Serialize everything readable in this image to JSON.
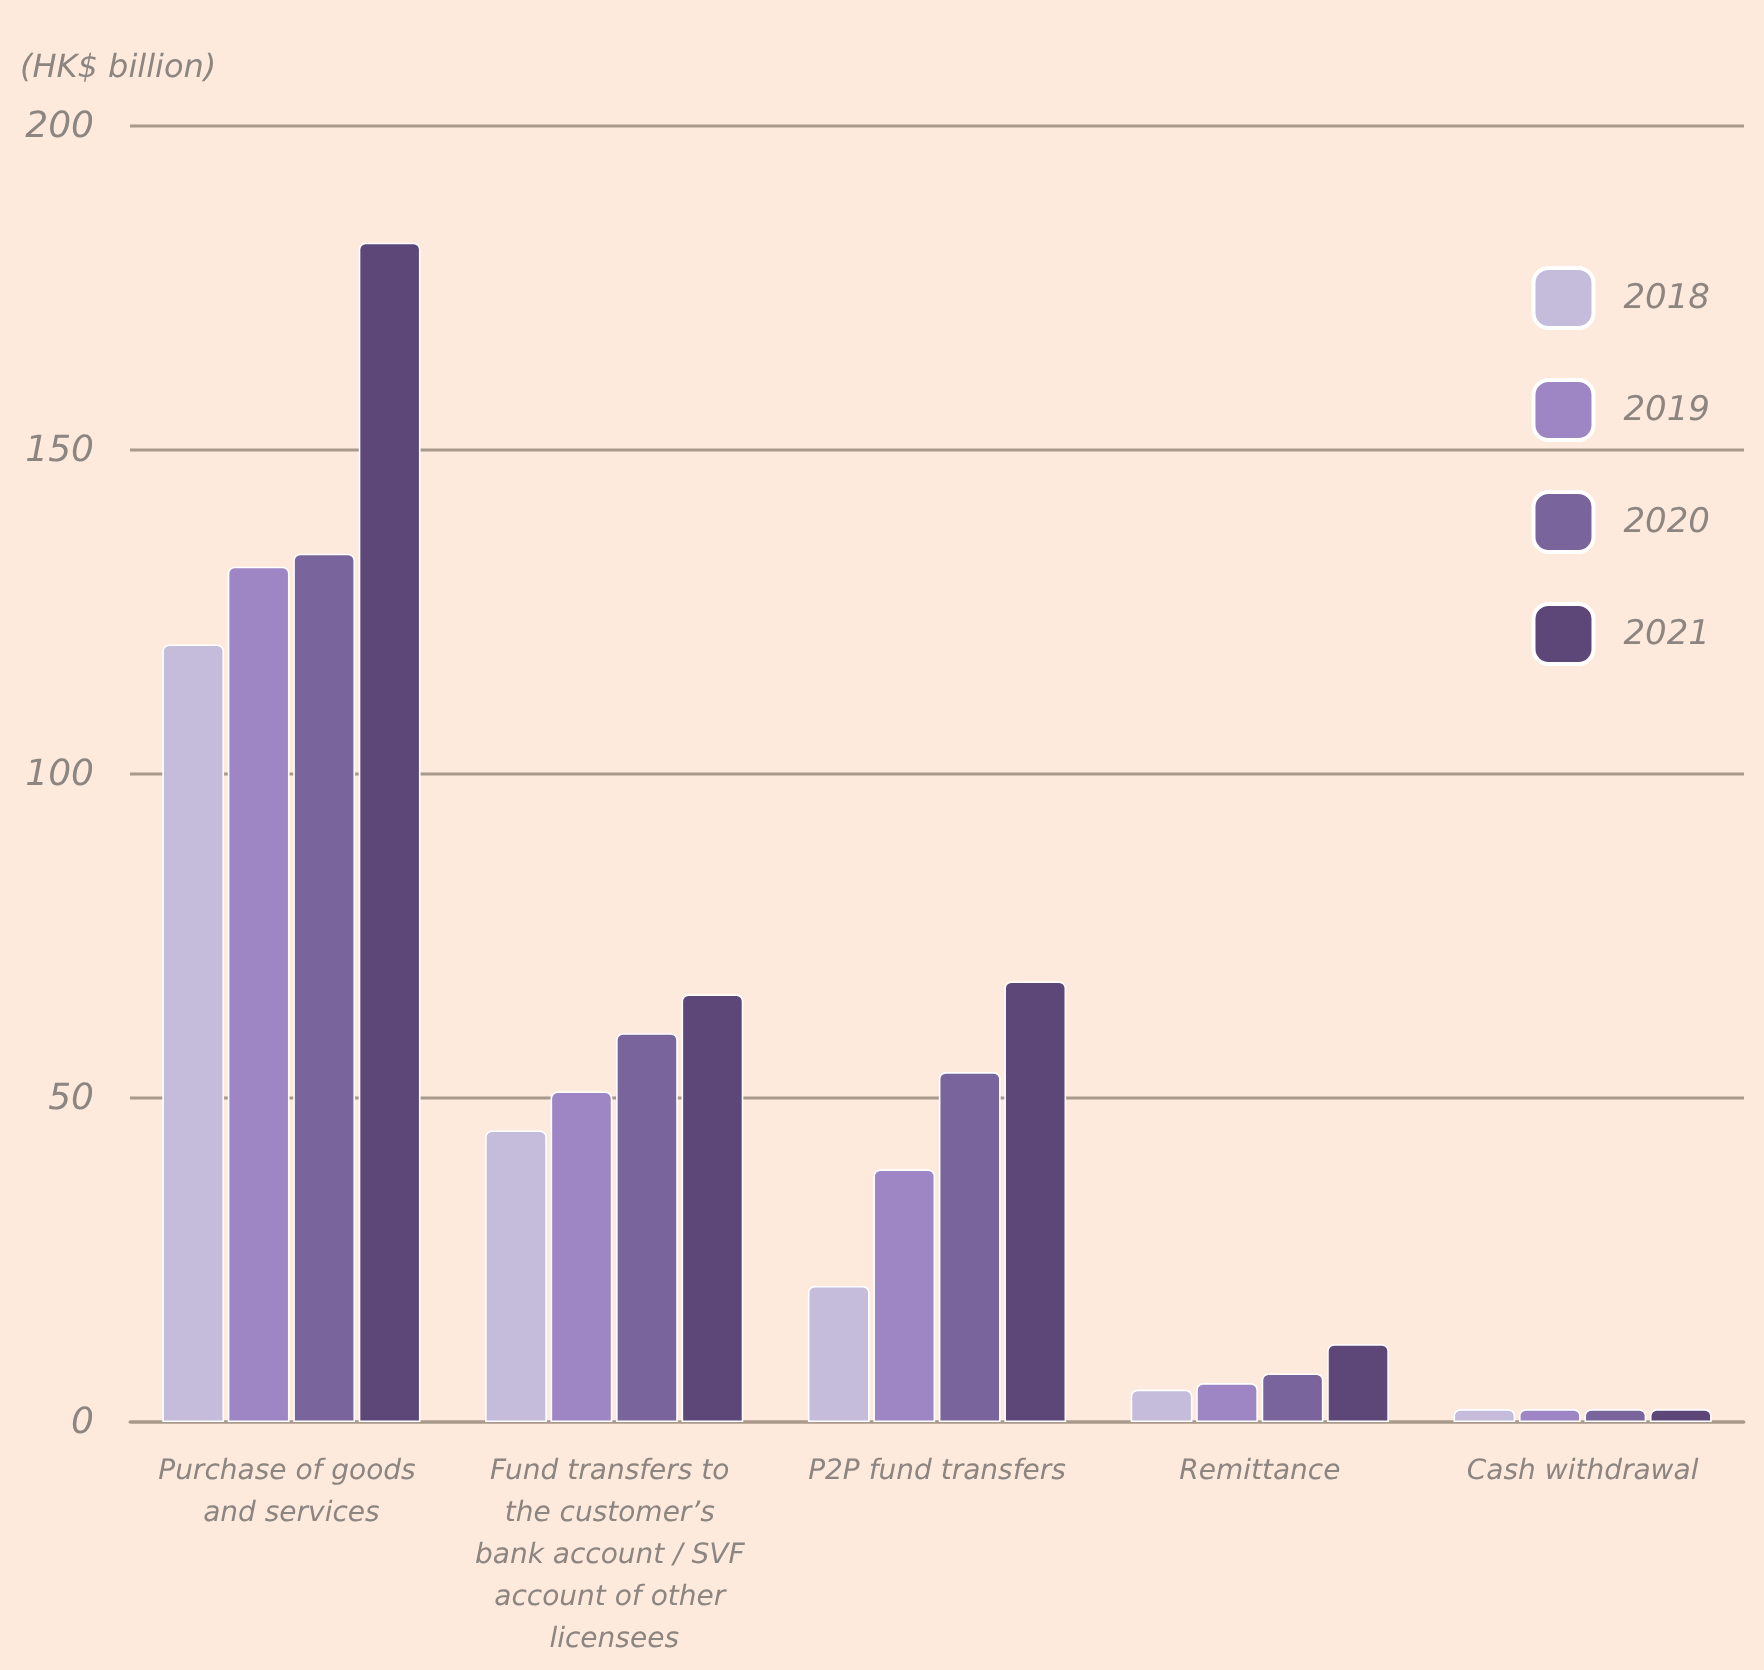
{
  "chart_data": {
    "type": "bar",
    "ylabel": "(HK$ billion)",
    "categories": [
      "Purchase of goods and services",
      "Fund transfers to the customer’s bank account / SVF account of other licensees",
      "P2P fund transfers",
      "Remittance",
      "Cash withdrawal"
    ],
    "series": [
      {
        "name": "2018",
        "color": "#c5bcdc",
        "values": [
          120,
          45,
          21,
          5,
          2
        ]
      },
      {
        "name": "2019",
        "color": "#9d86c3",
        "values": [
          132,
          51,
          39,
          6,
          2
        ]
      },
      {
        "name": "2020",
        "color": "#7a649c",
        "values": [
          134,
          60,
          54,
          7.5,
          2
        ]
      },
      {
        "name": "2021",
        "color": "#5d4778",
        "values": [
          182,
          66,
          68,
          12,
          2
        ]
      }
    ],
    "ylim": [
      0,
      200
    ],
    "yticks": [
      0,
      50,
      100,
      150,
      200
    ],
    "grid": "y",
    "legend": "top right"
  }
}
